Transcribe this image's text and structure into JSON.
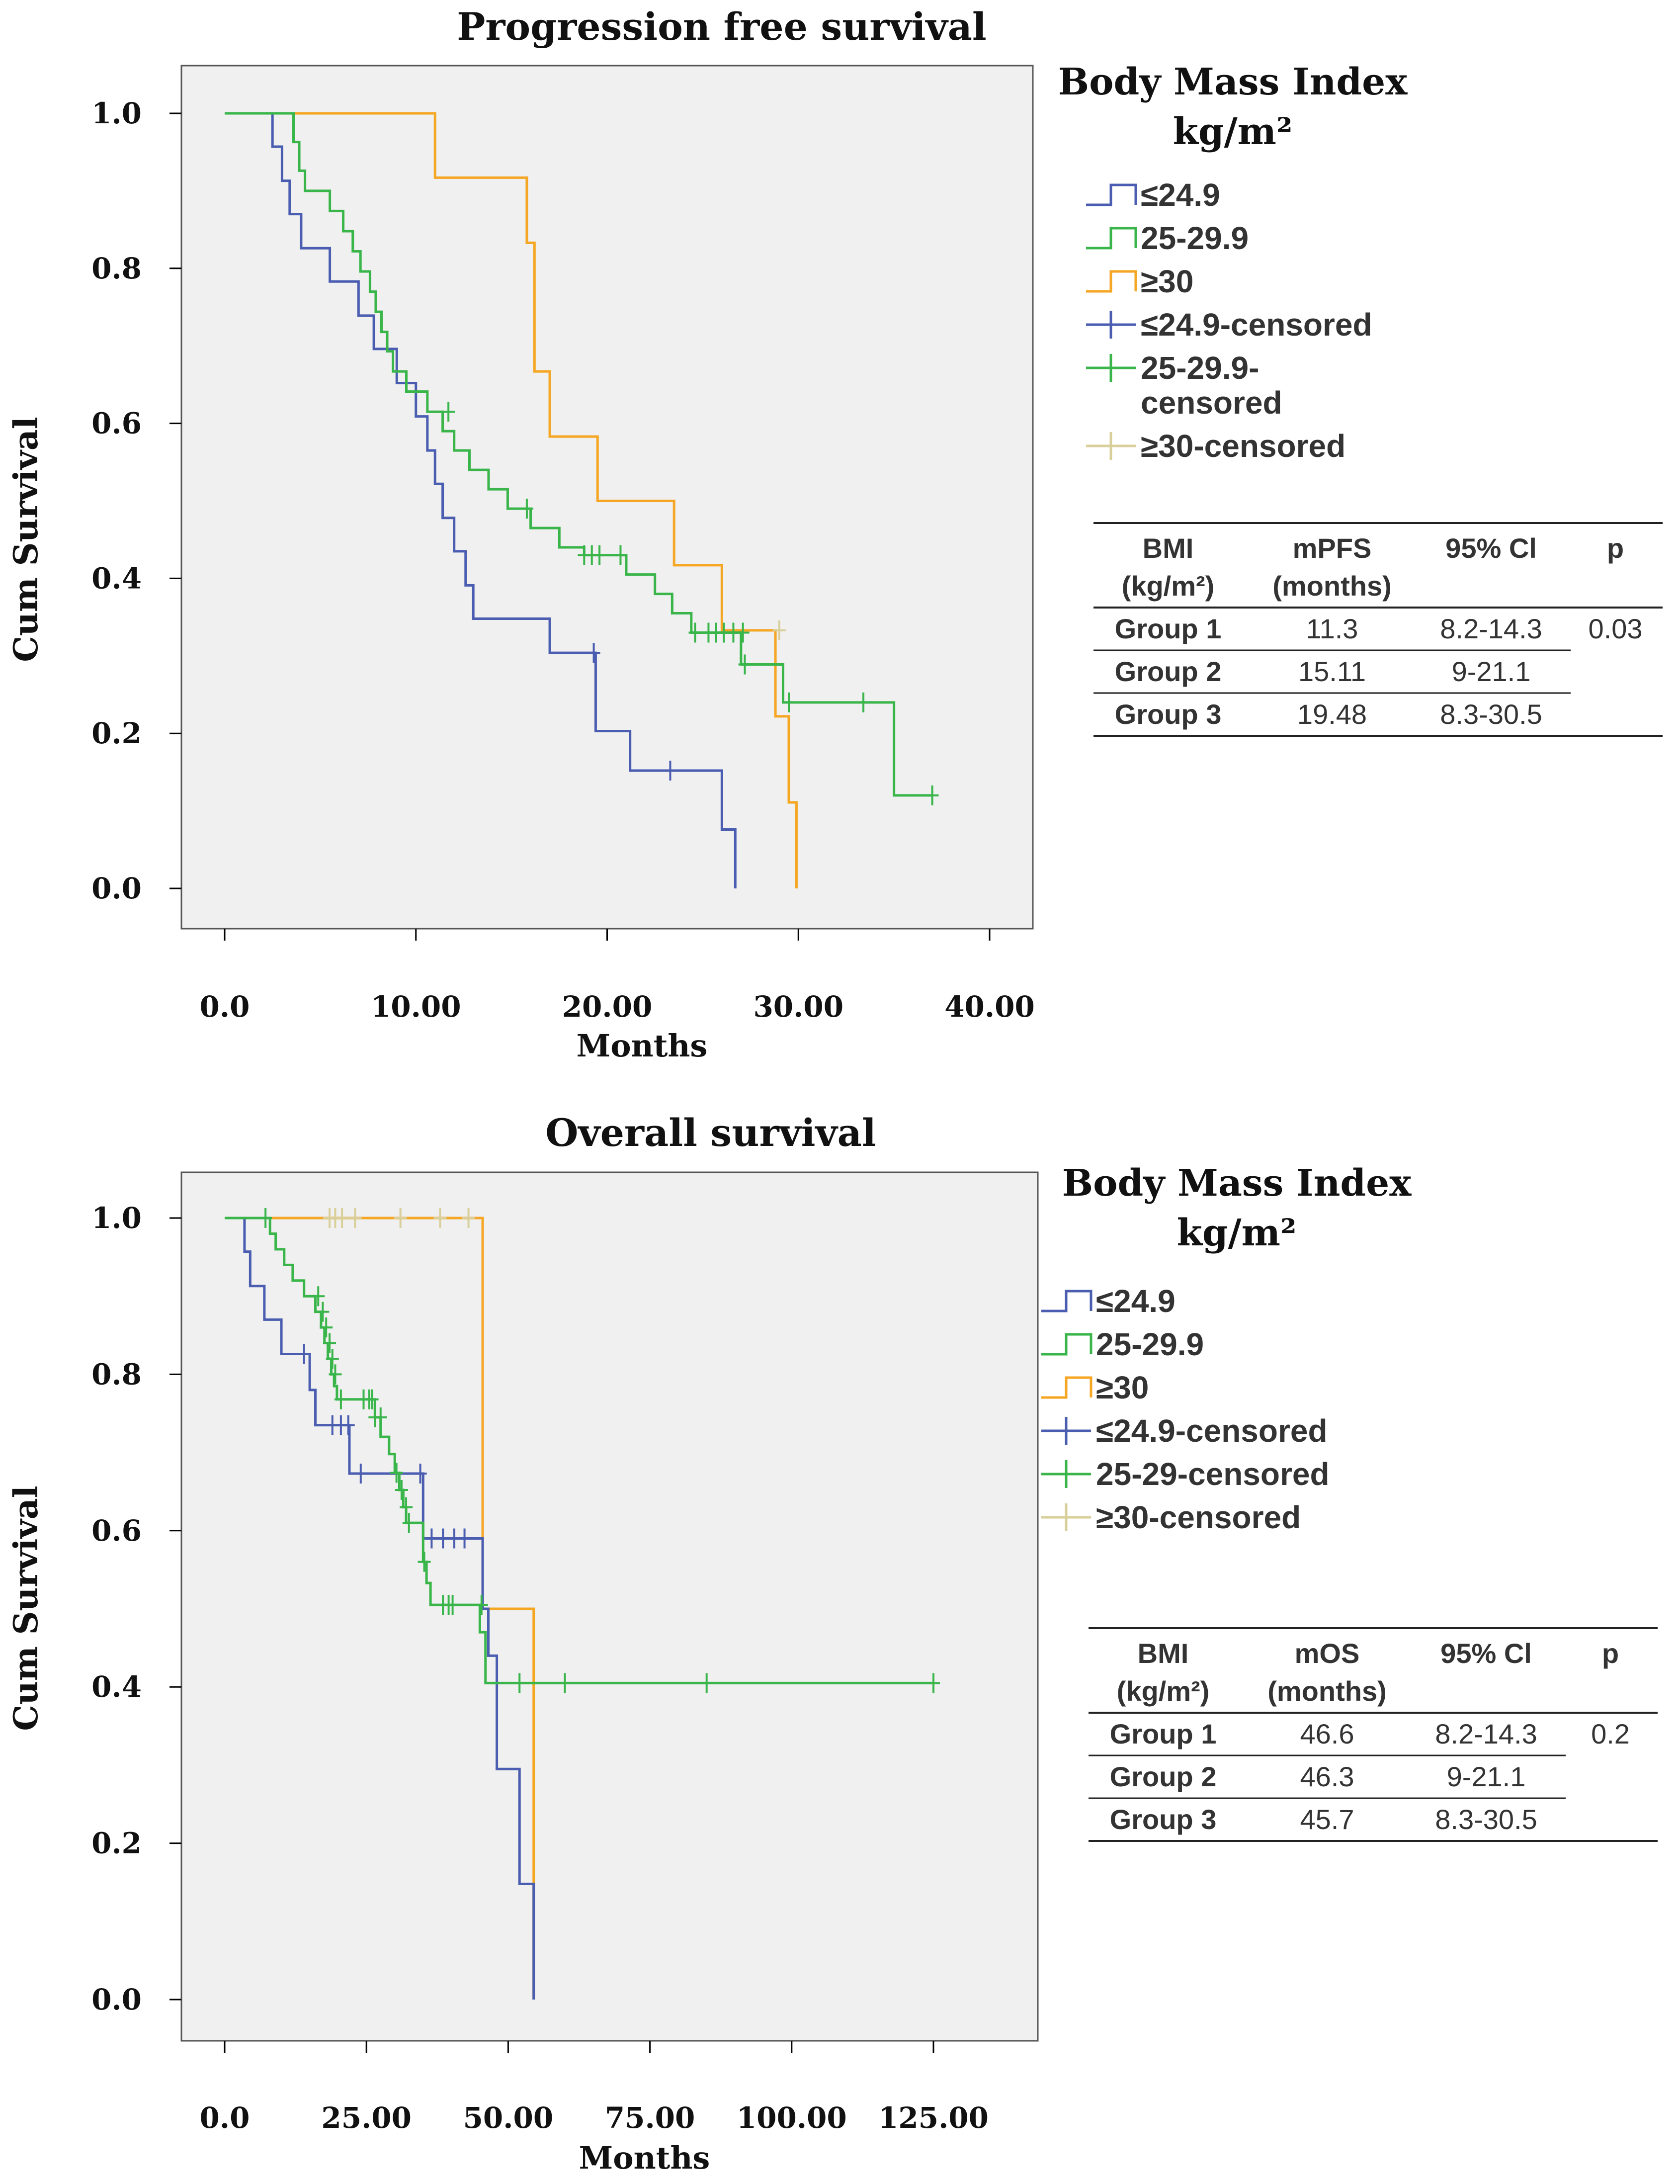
{
  "colors": {
    "low": "#4a5db0",
    "mid": "#39b54a",
    "high": "#f5a623",
    "high_censored": "#d8cf9a",
    "plot_bg": "#f0f0f0",
    "axis": "#000000"
  },
  "chart_data": [
    {
      "type": "line",
      "subtype": "kaplan-meier",
      "title": "Progression free survival",
      "xlabel": "Months",
      "ylabel": "Cum Survival",
      "xlim": [
        0,
        40
      ],
      "ylim": [
        0,
        1
      ],
      "x_ticks": [
        0,
        10,
        20,
        30,
        40
      ],
      "x_tick_labels": [
        "0.0",
        "10.00",
        "20.00",
        "30.00",
        "40.00"
      ],
      "y_ticks": [
        0,
        0.2,
        0.4,
        0.6,
        0.8,
        1.0
      ],
      "y_tick_labels": [
        "0.0",
        "0.2",
        "0.4",
        "0.6",
        "0.8",
        "1.0"
      ],
      "grid": false,
      "legend_title": "Body Mass Index kg/m²",
      "legend_title_lines": [
        "Body Mass Index",
        "kg/m²"
      ],
      "legend_position": "right",
      "legend": [
        {
          "label": "≤24.9",
          "kind": "step",
          "color_key": "low"
        },
        {
          "label": "25-29.9",
          "kind": "step",
          "color_key": "mid"
        },
        {
          "label": "≥30",
          "kind": "step",
          "color_key": "high"
        },
        {
          "label": "≤24.9-censored",
          "kind": "cross",
          "color_key": "low"
        },
        {
          "label": "25-29.9-\ncensored",
          "kind": "cross",
          "color_key": "mid"
        },
        {
          "label": "≥30-censored",
          "kind": "cross",
          "color_key": "high_censored"
        }
      ],
      "series": [
        {
          "name": "≤24.9",
          "color_key": "low",
          "steps": [
            [
              0,
              1.0
            ],
            [
              2.5,
              0.957
            ],
            [
              3.0,
              0.913
            ],
            [
              3.4,
              0.87
            ],
            [
              4.0,
              0.826
            ],
            [
              5.5,
              0.783
            ],
            [
              7.0,
              0.739
            ],
            [
              7.8,
              0.696
            ],
            [
              9.0,
              0.652
            ],
            [
              10.0,
              0.609
            ],
            [
              10.6,
              0.565
            ],
            [
              11.0,
              0.522
            ],
            [
              11.4,
              0.478
            ],
            [
              12.0,
              0.435
            ],
            [
              12.6,
              0.391
            ],
            [
              13.0,
              0.348
            ],
            [
              17.0,
              0.304
            ],
            [
              19.4,
              0.203
            ],
            [
              21.2,
              0.152
            ],
            [
              26.0,
              0.076
            ],
            [
              26.7,
              0.0
            ]
          ],
          "censored": [
            [
              19.3,
              0.304
            ],
            [
              23.3,
              0.152
            ]
          ],
          "end": 26.7
        },
        {
          "name": "25-29.9",
          "color_key": "mid",
          "steps": [
            [
              0,
              1.0
            ],
            [
              3.6,
              0.963
            ],
            [
              3.9,
              0.926
            ],
            [
              4.2,
              0.9
            ],
            [
              5.5,
              0.874
            ],
            [
              6.2,
              0.848
            ],
            [
              6.7,
              0.822
            ],
            [
              7.1,
              0.796
            ],
            [
              7.6,
              0.77
            ],
            [
              7.9,
              0.744
            ],
            [
              8.2,
              0.718
            ],
            [
              8.5,
              0.693
            ],
            [
              8.8,
              0.667
            ],
            [
              9.5,
              0.641
            ],
            [
              10.6,
              0.615
            ],
            [
              11.4,
              0.59
            ],
            [
              12.0,
              0.565
            ],
            [
              12.8,
              0.54
            ],
            [
              13.8,
              0.515
            ],
            [
              14.8,
              0.49
            ],
            [
              16.0,
              0.465
            ],
            [
              17.5,
              0.44
            ],
            [
              18.8,
              0.43
            ],
            [
              21.0,
              0.405
            ],
            [
              22.5,
              0.38
            ],
            [
              23.4,
              0.355
            ],
            [
              24.4,
              0.33
            ],
            [
              27.0,
              0.289
            ],
            [
              29.2,
              0.24
            ],
            [
              35.0,
              0.12
            ],
            [
              37.0,
              0.12
            ]
          ],
          "censored": [
            [
              11.7,
              0.615
            ],
            [
              15.8,
              0.49
            ],
            [
              18.8,
              0.43
            ],
            [
              19.2,
              0.43
            ],
            [
              19.6,
              0.43
            ],
            [
              20.7,
              0.43
            ],
            [
              24.6,
              0.33
            ],
            [
              25.3,
              0.33
            ],
            [
              25.7,
              0.33
            ],
            [
              26.1,
              0.33
            ],
            [
              26.6,
              0.33
            ],
            [
              27.1,
              0.33
            ],
            [
              27.2,
              0.289
            ],
            [
              29.5,
              0.24
            ],
            [
              33.4,
              0.24
            ],
            [
              37.0,
              0.12
            ]
          ],
          "end": 37.0
        },
        {
          "name": "≥30",
          "color_key": "high",
          "steps": [
            [
              0,
              1.0
            ],
            [
              11.0,
              0.917
            ],
            [
              15.8,
              0.833
            ],
            [
              16.2,
              0.667
            ],
            [
              17.0,
              0.583
            ],
            [
              19.5,
              0.5
            ],
            [
              23.5,
              0.417
            ],
            [
              26.0,
              0.333
            ],
            [
              28.8,
              0.222
            ],
            [
              29.5,
              0.111
            ],
            [
              29.9,
              0.0
            ]
          ],
          "censored": [
            [
              29.0,
              0.333
            ]
          ],
          "end": 29.9
        }
      ],
      "table": {
        "columns": [
          "BMI\n(kg/m²)",
          "mPFS\n(months)",
          "95% Cl",
          "p"
        ],
        "rows": [
          [
            "Group 1",
            "11.3",
            "8.2-14.3",
            "0.03"
          ],
          [
            "Group 2",
            "15.11",
            "9-21.1",
            ""
          ],
          [
            "Group 3",
            "19.48",
            "8.3-30.5",
            ""
          ]
        ]
      }
    },
    {
      "type": "line",
      "subtype": "kaplan-meier",
      "title": "Overall survival",
      "xlabel": "Months",
      "ylabel": "Cum Survival",
      "xlim": [
        0,
        125
      ],
      "ylim": [
        0,
        1
      ],
      "x_ticks": [
        0,
        25,
        50,
        75,
        100,
        125
      ],
      "x_tick_labels": [
        "0.0",
        "25.00",
        "50.00",
        "75.00",
        "100.00",
        "125.00"
      ],
      "y_ticks": [
        0,
        0.2,
        0.4,
        0.6,
        0.8,
        1.0
      ],
      "y_tick_labels": [
        "0.0",
        "0.2",
        "0.4",
        "0.6",
        "0.8",
        "1.0"
      ],
      "grid": false,
      "legend_title": "Body Mass Index kg/m²",
      "legend_title_lines": [
        "Body Mass Index",
        "kg/m²"
      ],
      "legend_position": "right",
      "legend": [
        {
          "label": "≤24.9",
          "kind": "step",
          "color_key": "low"
        },
        {
          "label": "25-29.9",
          "kind": "step",
          "color_key": "mid"
        },
        {
          "label": "≥30",
          "kind": "step",
          "color_key": "high"
        },
        {
          "label": "≤24.9-censored",
          "kind": "cross",
          "color_key": "low"
        },
        {
          "label": "25-29-censored",
          "kind": "cross",
          "color_key": "mid"
        },
        {
          "label": "≥30-censored",
          "kind": "cross",
          "color_key": "high_censored"
        }
      ],
      "series": [
        {
          "name": "≤24.9",
          "color_key": "low",
          "steps": [
            [
              0,
              1.0
            ],
            [
              3.5,
              0.957
            ],
            [
              4.5,
              0.913
            ],
            [
              7.0,
              0.87
            ],
            [
              10.0,
              0.826
            ],
            [
              15.0,
              0.78
            ],
            [
              16.0,
              0.735
            ],
            [
              22.0,
              0.673
            ],
            [
              35.0,
              0.59
            ],
            [
              45.5,
              0.5
            ],
            [
              46.5,
              0.44
            ],
            [
              48.0,
              0.295
            ],
            [
              52.0,
              0.148
            ],
            [
              54.5,
              0.0
            ]
          ],
          "censored": [
            [
              14.0,
              0.826
            ],
            [
              19.0,
              0.735
            ],
            [
              20.5,
              0.735
            ],
            [
              21.8,
              0.735
            ],
            [
              24.0,
              0.673
            ],
            [
              34.5,
              0.673
            ],
            [
              36.5,
              0.59
            ],
            [
              38.5,
              0.59
            ],
            [
              40.5,
              0.59
            ],
            [
              42.3,
              0.59
            ]
          ],
          "end": 54.5
        },
        {
          "name": "25-29.9",
          "color_key": "mid",
          "steps": [
            [
              0,
              1.0
            ],
            [
              8.0,
              0.98
            ],
            [
              9.0,
              0.96
            ],
            [
              10.5,
              0.94
            ],
            [
              12.0,
              0.92
            ],
            [
              14.0,
              0.9
            ],
            [
              16.0,
              0.88
            ],
            [
              17.0,
              0.86
            ],
            [
              17.6,
              0.84
            ],
            [
              18.2,
              0.82
            ],
            [
              18.8,
              0.8
            ],
            [
              19.3,
              0.785
            ],
            [
              19.8,
              0.768
            ],
            [
              26.5,
              0.745
            ],
            [
              27.5,
              0.72
            ],
            [
              29.0,
              0.698
            ],
            [
              30.0,
              0.674
            ],
            [
              30.8,
              0.652
            ],
            [
              31.5,
              0.63
            ],
            [
              32.0,
              0.61
            ],
            [
              35.0,
              0.56
            ],
            [
              35.6,
              0.533
            ],
            [
              36.3,
              0.505
            ],
            [
              45.0,
              0.47
            ],
            [
              46.0,
              0.405
            ],
            [
              125.0,
              0.405
            ]
          ],
          "censored": [
            [
              7.2,
              1.0
            ],
            [
              16.5,
              0.9
            ],
            [
              17.3,
              0.88
            ],
            [
              17.9,
              0.86
            ],
            [
              18.5,
              0.84
            ],
            [
              19.0,
              0.82
            ],
            [
              19.5,
              0.8
            ],
            [
              20.5,
              0.768
            ],
            [
              24.5,
              0.768
            ],
            [
              25.5,
              0.768
            ],
            [
              26.0,
              0.768
            ],
            [
              26.5,
              0.745
            ],
            [
              27.5,
              0.745
            ],
            [
              30.3,
              0.674
            ],
            [
              31.2,
              0.652
            ],
            [
              32.0,
              0.63
            ],
            [
              32.5,
              0.61
            ],
            [
              35.2,
              0.56
            ],
            [
              38.5,
              0.505
            ],
            [
              39.5,
              0.505
            ],
            [
              40.2,
              0.505
            ],
            [
              45.3,
              0.505
            ],
            [
              52.0,
              0.405
            ],
            [
              60.0,
              0.405
            ],
            [
              85.0,
              0.405
            ],
            [
              125.0,
              0.405
            ]
          ],
          "end": 125.0
        },
        {
          "name": "≥30",
          "color_key": "high",
          "steps": [
            [
              0,
              1.0
            ],
            [
              45.5,
              0.5
            ],
            [
              54.5,
              0.0
            ]
          ],
          "censored": [
            [
              18.5,
              1.0
            ],
            [
              19.5,
              1.0
            ],
            [
              20.7,
              1.0
            ],
            [
              23.0,
              1.0
            ],
            [
              31.0,
              1.0
            ],
            [
              38.0,
              1.0
            ],
            [
              43.0,
              1.0
            ]
          ],
          "end": 54.5
        }
      ],
      "table": {
        "columns": [
          "BMI\n(kg/m²)",
          "mOS\n(months)",
          "95% Cl",
          "p"
        ],
        "rows": [
          [
            "Group 1",
            "46.6",
            "8.2-14.3",
            "0.2"
          ],
          [
            "Group 2",
            "46.3",
            "9-21.1",
            ""
          ],
          [
            "Group 3",
            "45.7",
            "8.3-30.5",
            ""
          ]
        ]
      }
    }
  ]
}
